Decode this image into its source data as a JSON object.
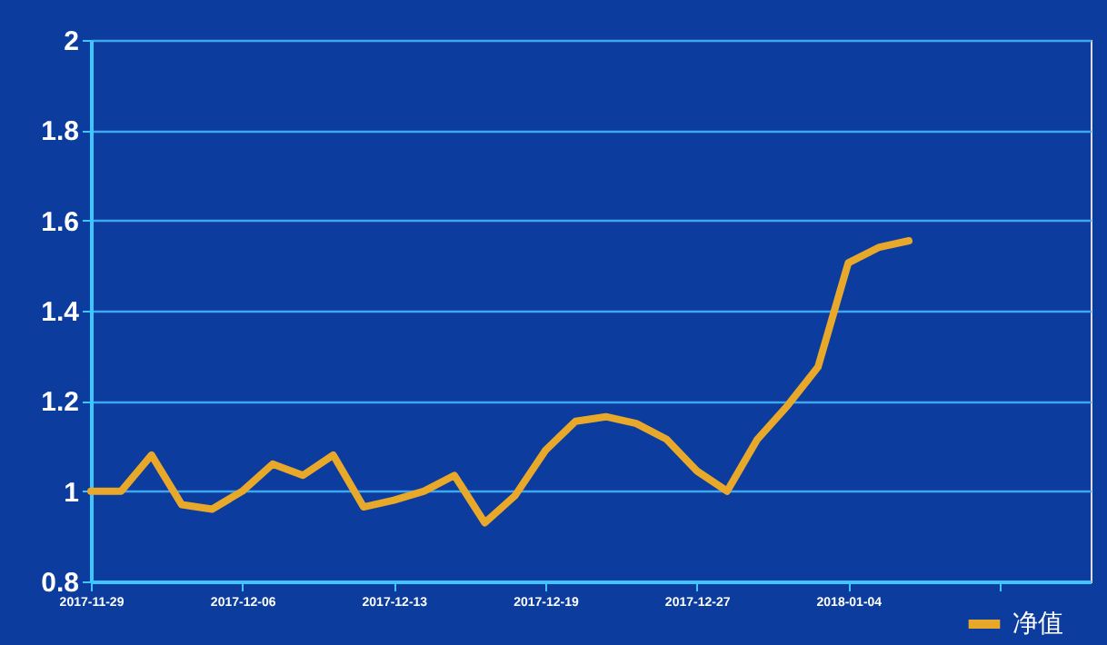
{
  "chart_data": {
    "type": "line",
    "categories": [
      "2017-11-29",
      null,
      null,
      null,
      null,
      "2017-12-06",
      null,
      null,
      null,
      null,
      "2017-12-13",
      null,
      null,
      null,
      null,
      "2017-12-19",
      null,
      null,
      null,
      null,
      "2017-12-27",
      null,
      null,
      null,
      null,
      "2018-01-04",
      null,
      null,
      null,
      null,
      null,
      null,
      null,
      null
    ],
    "series": [
      {
        "name": "净值",
        "color": "#e8a82a",
        "values": [
          1.0,
          1.0,
          1.08,
          0.97,
          0.96,
          1.0,
          1.06,
          1.035,
          1.08,
          0.965,
          0.98,
          1.0,
          1.035,
          0.93,
          0.99,
          1.09,
          1.155,
          1.165,
          1.15,
          1.115,
          1.045,
          1.0,
          1.115,
          1.19,
          1.275,
          1.506,
          1.54,
          1.555,
          null,
          null,
          null,
          null,
          null,
          null
        ]
      }
    ],
    "ylim": [
      0.8,
      2
    ],
    "yticks": [
      0.8,
      1,
      1.2,
      1.4,
      1.6,
      1.8,
      2
    ],
    "grid": true,
    "legend": "bottom right",
    "marker": "none",
    "line_style": "solid"
  }
}
